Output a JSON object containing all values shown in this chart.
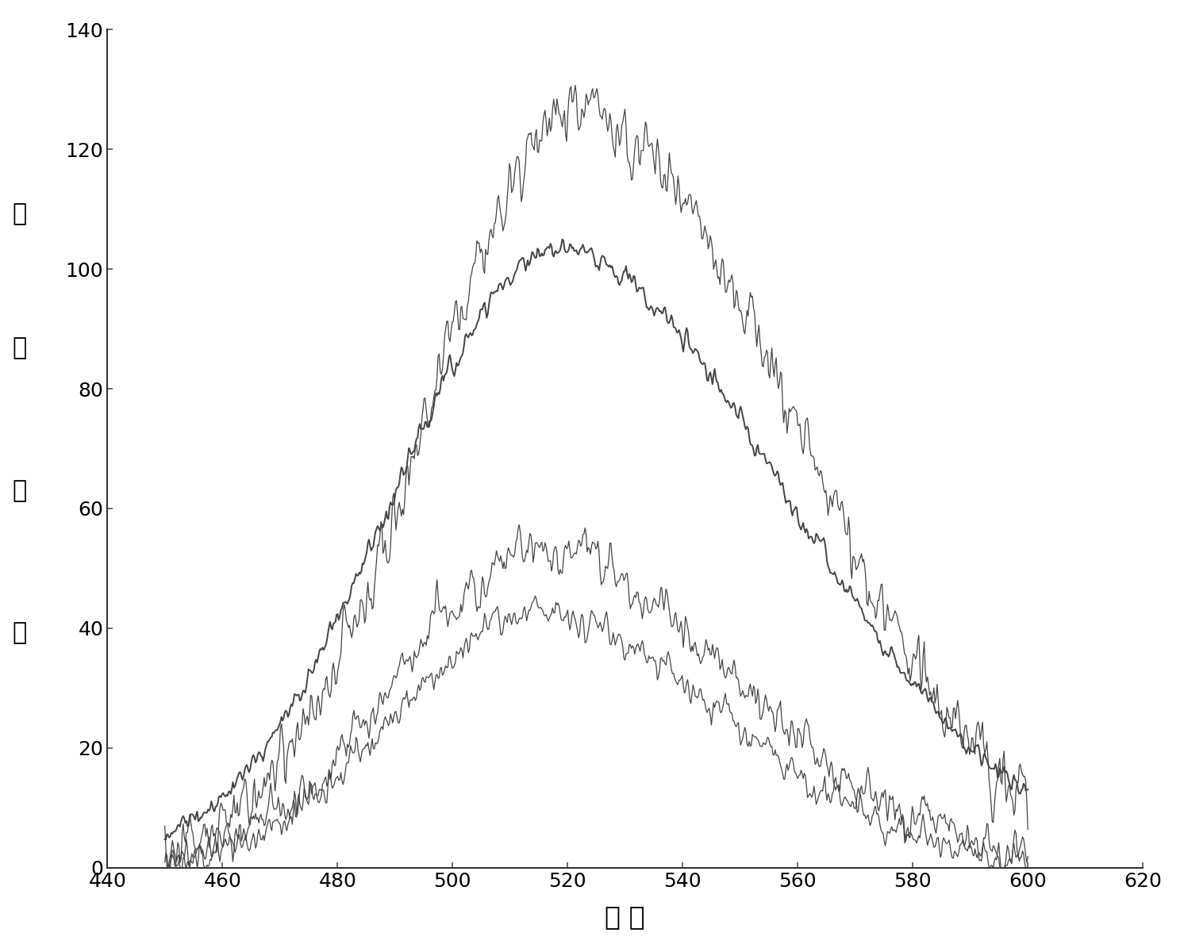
{
  "title": "",
  "xlabel": "波 长",
  "ylabel_chars": [
    "荧",
    "光",
    "强",
    "度"
  ],
  "xlim": [
    440,
    620
  ],
  "ylim": [
    0,
    140
  ],
  "xticks": [
    440,
    460,
    480,
    500,
    520,
    540,
    560,
    580,
    600,
    620
  ],
  "yticks": [
    0,
    20,
    40,
    60,
    80,
    100,
    120,
    140
  ],
  "x_start": 450,
  "x_end": 600,
  "curve_color": "#444444",
  "bg_color": "#ffffff",
  "xlabel_fontsize": 24,
  "ylabel_fontsize": 22,
  "tick_fontsize": 18,
  "curve1_noisy_peak": 127,
  "curve1_noisy_peak_x": 522,
  "curve1_smooth_peak": 103,
  "curve1_smooth_peak_x": 518,
  "curve2_noisy_peak": 53,
  "curve2_noisy_peak_x": 516,
  "curve2_smooth_peak": 42,
  "curve2_smooth_peak_x": 514
}
